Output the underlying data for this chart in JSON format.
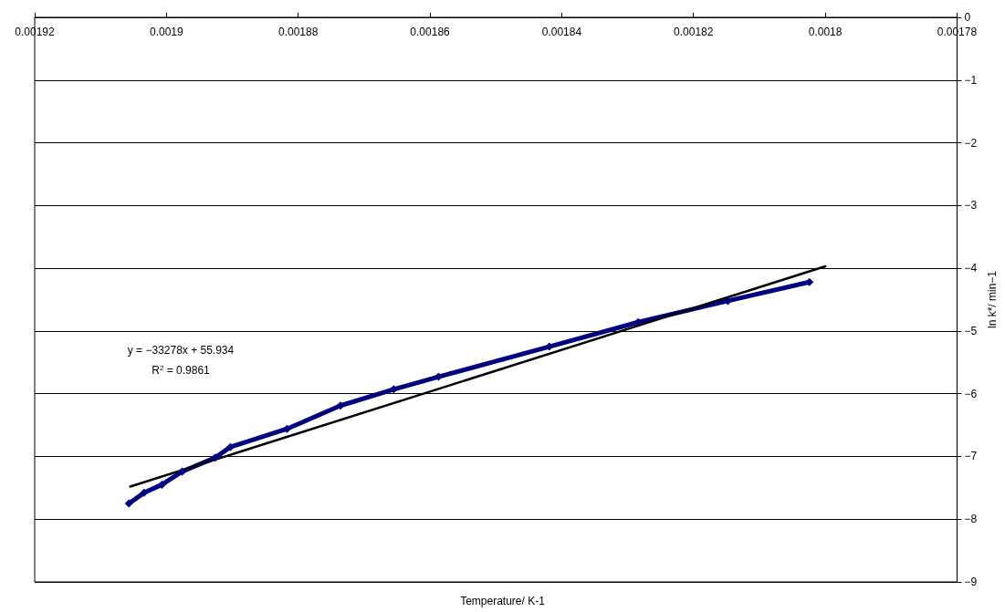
{
  "chart_data": {
    "type": "line",
    "xlabel": "Temperature/ K-1",
    "ylabel": "ln k*/ min−1",
    "xlim": [
      0.00192,
      0.00178
    ],
    "xticks": [
      0.00192,
      0.0019,
      0.00188,
      0.00186,
      0.00184,
      0.00182,
      0.0018,
      0.00178
    ],
    "ylim": [
      -9,
      0
    ],
    "yticks": [
      0,
      -1,
      -2,
      -3,
      -4,
      -5,
      -6,
      -7,
      -8,
      -9
    ],
    "grid": "y",
    "series": [
      {
        "color": "#000080",
        "marker": "diamond",
        "line_style": "solid",
        "x": [
          0.0019057,
          0.0019034,
          0.0019007,
          0.0018976,
          0.0018926,
          0.0018903,
          0.0018817,
          0.0018736,
          0.0018655,
          0.0018587,
          0.0018419,
          0.0018284,
          0.0018148,
          0.0018024
        ],
        "values": [
          -7.75,
          -7.58,
          -7.45,
          -7.24,
          -7.02,
          -6.85,
          -6.56,
          -6.19,
          -5.93,
          -5.73,
          -5.25,
          -4.86,
          -4.52,
          -4.22
        ]
      },
      {
        "color": "#000000",
        "marker": "none",
        "line_style": "solid",
        "x": [
          0.0019055,
          0.0018
        ],
        "values": [
          -7.48,
          -3.97
        ]
      }
    ],
    "annotations": [
      "y = −33278x + 55.934",
      "R$^{2}$ = 0.9861"
    ]
  }
}
